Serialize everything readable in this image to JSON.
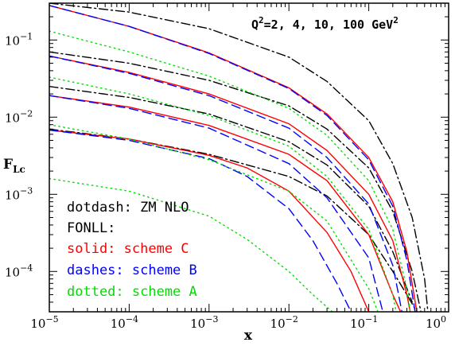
{
  "chart_data": {
    "type": "line",
    "xlabel": "x",
    "ylabel_main": "F",
    "ylabel_sub": "Lc",
    "x_scale": "log",
    "y_scale": "log",
    "xlim": [
      1e-05,
      1
    ],
    "ylim": [
      3e-05,
      0.3
    ],
    "x_ticks": [
      {
        "value": 1e-05,
        "base": "10",
        "exp": "−5"
      },
      {
        "value": 0.0001,
        "base": "10",
        "exp": "−4"
      },
      {
        "value": 0.001,
        "base": "10",
        "exp": "−3"
      },
      {
        "value": 0.01,
        "base": "10",
        "exp": "−2"
      },
      {
        "value": 0.1,
        "base": "10",
        "exp": "−1"
      },
      {
        "value": 1,
        "base": "10",
        "exp": "0"
      }
    ],
    "y_ticks": [
      {
        "value": 0.0001,
        "base": "10",
        "exp": "−4"
      },
      {
        "value": 0.001,
        "base": "10",
        "exp": "−3"
      },
      {
        "value": 0.01,
        "base": "10",
        "exp": "−2"
      },
      {
        "value": 0.1,
        "base": "10",
        "exp": "−1"
      }
    ],
    "annotation": {
      "pre": "Q",
      "sup": "2",
      "post": "=2, 4, 10, 100 GeV",
      "post_sup": "2"
    },
    "legend": [
      {
        "text": "dotdash: ZM NLO",
        "color": "#000000"
      },
      {
        "text": "FONLL:",
        "color": "#000000"
      },
      {
        "text": "solid: scheme C",
        "color": "#ff0000"
      },
      {
        "text": "dashes: scheme B",
        "color": "#0000ff"
      },
      {
        "text": "dotted: scheme A",
        "color": "#00dd00"
      }
    ],
    "grid": false,
    "series": [
      {
        "group": "Q2=2",
        "style": "dashdot",
        "color": "#000000",
        "points": [
          [
            1e-05,
            0.007
          ],
          [
            0.0001,
            0.0052
          ],
          [
            0.001,
            0.0033
          ],
          [
            0.01,
            0.0017
          ],
          [
            0.03,
            0.00095
          ],
          [
            0.1,
            0.0003
          ],
          [
            0.2,
            0.0001
          ],
          [
            0.3,
            5e-05
          ],
          [
            0.4,
            3e-05
          ]
        ]
      },
      {
        "group": "Q2=2",
        "style": "solid",
        "color": "#ff0000",
        "points": [
          [
            1e-05,
            0.0068
          ],
          [
            0.0001,
            0.0052
          ],
          [
            0.001,
            0.0032
          ],
          [
            0.003,
            0.0022
          ],
          [
            0.01,
            0.0011
          ],
          [
            0.03,
            0.00032
          ],
          [
            0.06,
            0.0001
          ],
          [
            0.1,
            3e-05
          ]
        ]
      },
      {
        "group": "Q2=2",
        "style": "dashed",
        "color": "#0000ff",
        "points": [
          [
            1e-05,
            0.0068
          ],
          [
            0.0001,
            0.005
          ],
          [
            0.001,
            0.0029
          ],
          [
            0.003,
            0.0017
          ],
          [
            0.01,
            0.00065
          ],
          [
            0.02,
            0.00025
          ],
          [
            0.04,
            7e-05
          ],
          [
            0.06,
            3e-05
          ]
        ]
      },
      {
        "group": "Q2=2",
        "style": "dotted",
        "color": "#00dd00",
        "points": [
          [
            1e-05,
            0.0016
          ],
          [
            0.0001,
            0.0011
          ],
          [
            0.001,
            0.00052
          ],
          [
            0.003,
            0.00026
          ],
          [
            0.01,
            0.0001
          ],
          [
            0.02,
            5e-05
          ],
          [
            0.035,
            3e-05
          ]
        ]
      },
      {
        "group": "Q2=4",
        "style": "dashdot",
        "color": "#000000",
        "points": [
          [
            1e-05,
            0.025
          ],
          [
            0.0001,
            0.018
          ],
          [
            0.001,
            0.011
          ],
          [
            0.01,
            0.0048
          ],
          [
            0.03,
            0.0024
          ],
          [
            0.1,
            0.0007
          ],
          [
            0.2,
            0.00018
          ],
          [
            0.35,
            4e-05
          ]
        ]
      },
      {
        "group": "Q2=4",
        "style": "solid",
        "color": "#ff0000",
        "points": [
          [
            1e-05,
            0.019
          ],
          [
            0.0001,
            0.0135
          ],
          [
            0.001,
            0.0078
          ],
          [
            0.01,
            0.0033
          ],
          [
            0.03,
            0.0015
          ],
          [
            0.1,
            0.0003
          ],
          [
            0.2,
            5e-05
          ],
          [
            0.25,
            3e-05
          ]
        ]
      },
      {
        "group": "Q2=4",
        "style": "dashed",
        "color": "#0000ff",
        "points": [
          [
            1e-05,
            0.019
          ],
          [
            0.0001,
            0.013
          ],
          [
            0.001,
            0.0072
          ],
          [
            0.01,
            0.0025
          ],
          [
            0.03,
            0.0009
          ],
          [
            0.1,
            0.00015
          ],
          [
            0.15,
            3e-05
          ]
        ]
      },
      {
        "group": "Q2=4",
        "style": "dotted",
        "color": "#00dd00",
        "points": [
          [
            1e-05,
            0.008
          ],
          [
            0.0001,
            0.0052
          ],
          [
            0.001,
            0.0028
          ],
          [
            0.01,
            0.0011
          ],
          [
            0.03,
            0.00045
          ],
          [
            0.1,
            6e-05
          ],
          [
            0.13,
            3e-05
          ]
        ]
      },
      {
        "group": "Q2=10",
        "style": "dashdot",
        "color": "#000000",
        "points": [
          [
            1e-05,
            0.07
          ],
          [
            0.0001,
            0.05
          ],
          [
            0.001,
            0.03
          ],
          [
            0.01,
            0.014
          ],
          [
            0.03,
            0.007
          ],
          [
            0.1,
            0.0022
          ],
          [
            0.2,
            0.0006
          ],
          [
            0.35,
            0.0001
          ],
          [
            0.45,
            3e-05
          ]
        ]
      },
      {
        "group": "Q2=10",
        "style": "solid",
        "color": "#ff0000",
        "points": [
          [
            1e-05,
            0.062
          ],
          [
            0.0001,
            0.038
          ],
          [
            0.001,
            0.02
          ],
          [
            0.01,
            0.0082
          ],
          [
            0.03,
            0.0037
          ],
          [
            0.1,
            0.001
          ],
          [
            0.2,
            0.00025
          ],
          [
            0.3,
            5e-05
          ],
          [
            0.33,
            3e-05
          ]
        ]
      },
      {
        "group": "Q2=10",
        "style": "dashed",
        "color": "#0000ff",
        "points": [
          [
            1e-05,
            0.062
          ],
          [
            0.0001,
            0.037
          ],
          [
            0.001,
            0.019
          ],
          [
            0.01,
            0.0072
          ],
          [
            0.03,
            0.003
          ],
          [
            0.1,
            0.00075
          ],
          [
            0.2,
            0.00012
          ],
          [
            0.26,
            3e-05
          ]
        ]
      },
      {
        "group": "Q2=10",
        "style": "dotted",
        "color": "#00dd00",
        "points": [
          [
            1e-05,
            0.033
          ],
          [
            0.0001,
            0.02
          ],
          [
            0.001,
            0.0105
          ],
          [
            0.01,
            0.0042
          ],
          [
            0.03,
            0.0017
          ],
          [
            0.1,
            0.00035
          ],
          [
            0.2,
            5e-05
          ],
          [
            0.22,
            3e-05
          ]
        ]
      },
      {
        "group": "Q2=100",
        "style": "dashdot",
        "color": "#000000",
        "points": [
          [
            1e-05,
            0.3
          ],
          [
            0.0001,
            0.23
          ],
          [
            0.001,
            0.14
          ],
          [
            0.01,
            0.06
          ],
          [
            0.03,
            0.029
          ],
          [
            0.1,
            0.009
          ],
          [
            0.2,
            0.0025
          ],
          [
            0.35,
            0.0005
          ],
          [
            0.5,
            8e-05
          ],
          [
            0.55,
            3e-05
          ]
        ]
      },
      {
        "group": "Q2=100",
        "style": "solid",
        "color": "#ff0000",
        "points": [
          [
            1e-05,
            0.28
          ],
          [
            0.0001,
            0.15
          ],
          [
            0.001,
            0.068
          ],
          [
            0.01,
            0.024
          ],
          [
            0.03,
            0.011
          ],
          [
            0.1,
            0.003
          ],
          [
            0.2,
            0.0008
          ],
          [
            0.3,
            0.00018
          ],
          [
            0.4,
            3e-05
          ]
        ]
      },
      {
        "group": "Q2=100",
        "style": "dashed",
        "color": "#0000ff",
        "points": [
          [
            1e-05,
            0.28
          ],
          [
            0.0001,
            0.15
          ],
          [
            0.001,
            0.067
          ],
          [
            0.01,
            0.0235
          ],
          [
            0.03,
            0.0105
          ],
          [
            0.1,
            0.0028
          ],
          [
            0.2,
            0.0007
          ],
          [
            0.3,
            0.00014
          ],
          [
            0.38,
            3e-05
          ]
        ]
      },
      {
        "group": "Q2=100",
        "style": "dotted",
        "color": "#00dd00",
        "points": [
          [
            1e-05,
            0.13
          ],
          [
            0.0001,
            0.07
          ],
          [
            0.001,
            0.034
          ],
          [
            0.01,
            0.013
          ],
          [
            0.03,
            0.0058
          ],
          [
            0.1,
            0.0015
          ],
          [
            0.2,
            0.00035
          ],
          [
            0.3,
            6e-05
          ],
          [
            0.33,
            3e-05
          ]
        ]
      }
    ]
  }
}
